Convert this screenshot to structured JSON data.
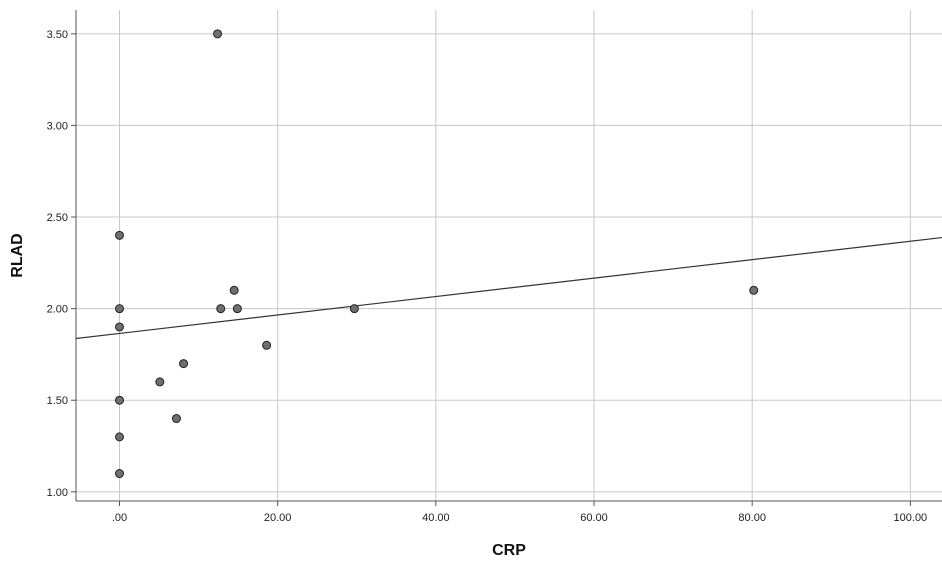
{
  "chart_data": {
    "type": "scatter",
    "title": "",
    "xlabel": "CRP",
    "ylabel": "RLAD",
    "xlim": [
      -5.5,
      104
    ],
    "ylim": [
      0.95,
      3.63
    ],
    "x_ticks": [
      0,
      20,
      40,
      60,
      80,
      100
    ],
    "x_tick_labels": [
      ".00",
      "20.00",
      "40.00",
      "60.00",
      "80.00",
      "100.00"
    ],
    "y_ticks": [
      1.0,
      1.5,
      2.0,
      2.5,
      3.0,
      3.5
    ],
    "y_tick_labels": [
      "1.00",
      "1.50",
      "2.00",
      "2.50",
      "3.00",
      "3.50"
    ],
    "grid": true,
    "points": [
      {
        "x": 0,
        "y": 2.4
      },
      {
        "x": 0,
        "y": 2.0
      },
      {
        "x": 0,
        "y": 1.9
      },
      {
        "x": 0,
        "y": 1.5
      },
      {
        "x": 0,
        "y": 1.3
      },
      {
        "x": 0,
        "y": 1.1
      },
      {
        "x": 5.1,
        "y": 1.6
      },
      {
        "x": 7.2,
        "y": 1.4
      },
      {
        "x": 8.1,
        "y": 1.7
      },
      {
        "x": 12.4,
        "y": 3.5
      },
      {
        "x": 12.8,
        "y": 2.0
      },
      {
        "x": 14.5,
        "y": 2.1
      },
      {
        "x": 14.9,
        "y": 2.0
      },
      {
        "x": 18.6,
        "y": 1.8
      },
      {
        "x": 29.7,
        "y": 2.0
      },
      {
        "x": 80.2,
        "y": 2.1
      }
    ],
    "fit_line": {
      "x": [
        -5.5,
        104
      ],
      "y": [
        1.837,
        2.388
      ]
    }
  }
}
